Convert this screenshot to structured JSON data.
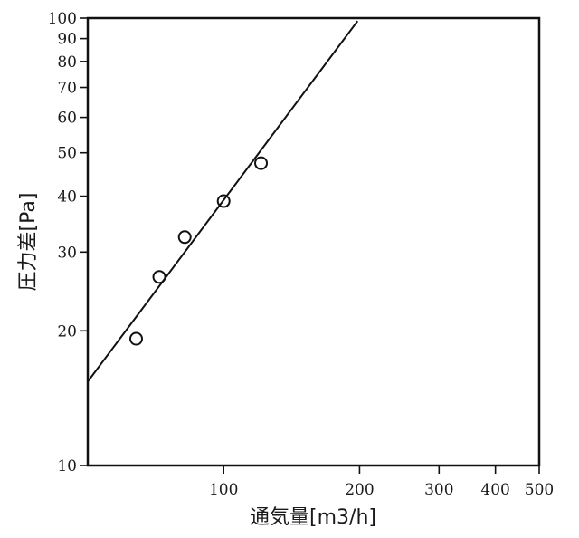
{
  "chart_data": {
    "type": "scatter",
    "title": "",
    "xlabel": "通気量[m3/h]",
    "ylabel": "圧力差[Pa]",
    "x_scale": "log",
    "y_scale": "log",
    "xlim": [
      50,
      500
    ],
    "ylim": [
      10,
      100
    ],
    "x_ticks": [
      100,
      200,
      300,
      400,
      500
    ],
    "x_tick_labels": [
      "100",
      "200",
      "300",
      "400",
      "500"
    ],
    "y_ticks": [
      10,
      20,
      30,
      40,
      50,
      60,
      70,
      80,
      90,
      100
    ],
    "y_tick_labels": [
      "10",
      "20",
      "30",
      "40",
      "50",
      "60",
      "70",
      "80",
      "90",
      "100"
    ],
    "grid": false,
    "series": [
      {
        "kind": "points",
        "marker": "open-circle",
        "x": [
          64,
          72,
          82,
          100,
          121
        ],
        "y": [
          19.2,
          26.4,
          32.4,
          39.0,
          47.4
        ]
      },
      {
        "kind": "line",
        "x": [
          50,
          198
        ],
        "y": [
          15.4,
          98.5
        ]
      }
    ]
  }
}
